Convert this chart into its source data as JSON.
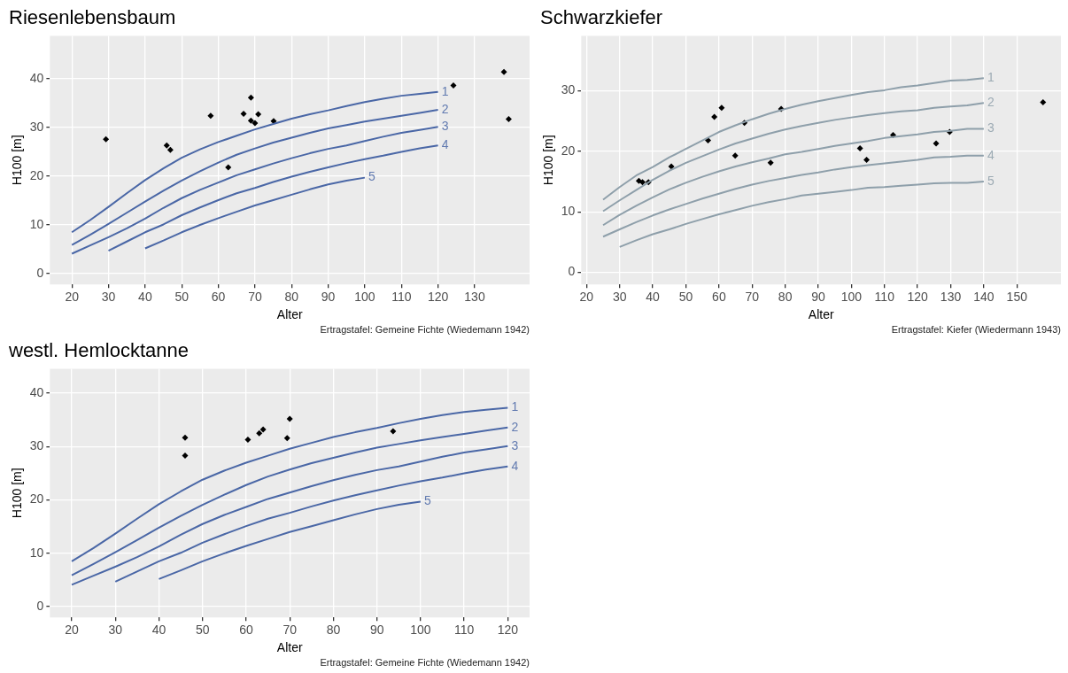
{
  "chart_data": [
    {
      "type": "line",
      "title": "Riesenlebensbaum",
      "xlabel": "Alter",
      "ylabel": "H100 [m]",
      "annotations": [
        "Ertragstafel: Gemeine Fichte (Wiedemann 1942)"
      ],
      "xlim": [
        14,
        145
      ],
      "xticks": [
        20,
        30,
        40,
        50,
        60,
        70,
        80,
        90,
        100,
        110,
        120,
        130
      ],
      "ylim": [
        -2.2,
        48.8
      ],
      "yticks": [
        0,
        10,
        20,
        30,
        40
      ],
      "grid": true,
      "legend": false,
      "line_style": "solid",
      "series": [
        {
          "name": "1",
          "color": "#4a67a6",
          "marker": "none",
          "x": [
            20,
            25,
            30,
            35,
            40,
            45,
            50,
            55,
            60,
            65,
            70,
            75,
            80,
            85,
            90,
            95,
            100,
            105,
            110,
            115,
            120
          ],
          "values": [
            8.5,
            11,
            13.7,
            16.5,
            19.2,
            21.6,
            23.8,
            25.5,
            27,
            28.3,
            29.6,
            30.7,
            31.8,
            32.7,
            33.5,
            34.4,
            35.2,
            35.9,
            36.5,
            36.9,
            37.3
          ]
        },
        {
          "name": "2",
          "color": "#4a67a6",
          "marker": "none",
          "x": [
            20,
            25,
            30,
            35,
            40,
            45,
            50,
            55,
            60,
            65,
            70,
            75,
            80,
            85,
            90,
            95,
            100,
            105,
            110,
            115,
            120
          ],
          "values": [
            5.9,
            8,
            10.2,
            12.5,
            14.8,
            17,
            19.1,
            21,
            22.8,
            24.4,
            25.7,
            26.9,
            27.9,
            28.9,
            29.8,
            30.5,
            31.2,
            31.8,
            32.4,
            33,
            33.6
          ]
        },
        {
          "name": "3",
          "color": "#4a67a6",
          "marker": "none",
          "x": [
            20,
            25,
            30,
            35,
            40,
            45,
            50,
            55,
            60,
            65,
            70,
            75,
            80,
            85,
            90,
            95,
            100,
            105,
            110,
            115,
            120
          ],
          "values": [
            4.1,
            5.8,
            7.5,
            9.3,
            11.3,
            13.5,
            15.5,
            17.2,
            18.7,
            20.2,
            21.4,
            22.6,
            23.7,
            24.7,
            25.6,
            26.3,
            27.2,
            28.1,
            28.9,
            29.5,
            30.1
          ]
        },
        {
          "name": "4",
          "color": "#4a67a6",
          "marker": "none",
          "x": [
            30,
            35,
            40,
            45,
            50,
            55,
            60,
            65,
            70,
            75,
            80,
            85,
            90,
            95,
            100,
            105,
            110,
            115,
            120
          ],
          "values": [
            4.7,
            6.6,
            8.5,
            10.1,
            12,
            13.6,
            15.1,
            16.5,
            17.6,
            18.8,
            19.9,
            20.9,
            21.8,
            22.7,
            23.5,
            24.2,
            25,
            25.7,
            26.3
          ]
        },
        {
          "name": "5",
          "color": "#4a67a6",
          "marker": "none",
          "x": [
            40,
            45,
            50,
            55,
            60,
            65,
            70,
            75,
            80,
            85,
            90,
            95,
            100
          ],
          "values": [
            5.2,
            6.8,
            8.5,
            10,
            11.4,
            12.7,
            14,
            15.1,
            16.2,
            17.3,
            18.3,
            19.1,
            19.7
          ]
        },
        {
          "type": "scatter",
          "color": "#000000",
          "marker": "diamond",
          "x": [
            29.3,
            45.9,
            46.9,
            57.9,
            62.7,
            66.9,
            68.9,
            68.9,
            70,
            70.9,
            75.1,
            124.2,
            138,
            139.3
          ],
          "values": [
            27.6,
            26.3,
            25.4,
            32.4,
            21.8,
            32.8,
            36.1,
            31.4,
            30.9,
            32.7,
            31.3,
            38.6,
            41.4,
            31.7
          ]
        }
      ]
    },
    {
      "type": "line",
      "title": "Schwarzkiefer",
      "xlabel": "Alter",
      "ylabel": "H100 [m]",
      "annotations": [
        "Ertragstafel: Kiefer (Wiedermann 1943)"
      ],
      "xlim": [
        18.4,
        163.3
      ],
      "xticks": [
        20,
        30,
        40,
        50,
        60,
        70,
        80,
        90,
        100,
        110,
        120,
        130,
        140,
        150
      ],
      "ylim": [
        -2,
        39.1
      ],
      "yticks": [
        0,
        10,
        20,
        30
      ],
      "grid": true,
      "legend": false,
      "line_style": "solid",
      "series": [
        {
          "name": "1",
          "color": "#8e9faa",
          "marker": "none",
          "x": [
            25,
            30,
            35,
            40,
            45,
            50,
            55,
            60,
            65,
            70,
            75,
            80,
            85,
            90,
            95,
            100,
            105,
            110,
            115,
            120,
            125,
            130,
            135,
            140
          ],
          "values": [
            12,
            14.1,
            16,
            17.4,
            19,
            20.4,
            21.8,
            23.2,
            24.3,
            25.3,
            26.2,
            27,
            27.7,
            28.3,
            28.8,
            29.3,
            29.8,
            30.1,
            30.6,
            30.9,
            31.3,
            31.7,
            31.8,
            32.1
          ]
        },
        {
          "name": "2",
          "color": "#8e9faa",
          "marker": "none",
          "x": [
            25,
            30,
            35,
            40,
            45,
            50,
            55,
            60,
            65,
            70,
            75,
            80,
            85,
            90,
            95,
            100,
            105,
            110,
            115,
            120,
            125,
            130,
            135,
            140
          ],
          "values": [
            10.1,
            11.9,
            13.6,
            15.3,
            16.8,
            18.1,
            19.2,
            20.3,
            21.3,
            22.1,
            22.9,
            23.6,
            24.2,
            24.7,
            25.2,
            25.6,
            26,
            26.3,
            26.6,
            26.8,
            27.2,
            27.4,
            27.6,
            28
          ]
        },
        {
          "name": "3",
          "color": "#8e9faa",
          "marker": "none",
          "x": [
            25,
            30,
            35,
            40,
            45,
            50,
            55,
            60,
            65,
            70,
            75,
            80,
            85,
            90,
            95,
            100,
            105,
            110,
            115,
            120,
            125,
            130,
            135,
            140
          ],
          "values": [
            7.8,
            9.5,
            11,
            12.4,
            13.7,
            14.8,
            15.8,
            16.7,
            17.5,
            18.2,
            18.8,
            19.5,
            19.9,
            20.4,
            20.9,
            21.3,
            21.7,
            22.2,
            22.5,
            22.8,
            23.2,
            23.4,
            23.7,
            23.7
          ]
        },
        {
          "name": "4",
          "color": "#8e9faa",
          "marker": "none",
          "x": [
            25,
            30,
            35,
            40,
            45,
            50,
            55,
            60,
            65,
            70,
            75,
            80,
            85,
            90,
            95,
            100,
            105,
            110,
            115,
            120,
            125,
            130,
            135,
            140
          ],
          "values": [
            5.9,
            7.1,
            8.3,
            9.4,
            10.4,
            11.3,
            12.2,
            13,
            13.8,
            14.5,
            15.1,
            15.6,
            16.1,
            16.5,
            17,
            17.4,
            17.7,
            18,
            18.3,
            18.6,
            19,
            19.1,
            19.3,
            19.3
          ]
        },
        {
          "name": "5",
          "color": "#8e9faa",
          "marker": "none",
          "x": [
            30,
            35,
            40,
            45,
            50,
            55,
            60,
            65,
            70,
            75,
            80,
            85,
            90,
            95,
            100,
            105,
            110,
            115,
            120,
            125,
            130,
            135,
            140
          ],
          "values": [
            4.2,
            5.3,
            6.3,
            7.1,
            8,
            8.8,
            9.6,
            10.3,
            11,
            11.6,
            12.1,
            12.7,
            13,
            13.3,
            13.6,
            14,
            14.1,
            14.3,
            14.5,
            14.7,
            14.8,
            14.8,
            15
          ]
        },
        {
          "type": "scatter",
          "color": "#000000",
          "marker": "diamond",
          "x": [
            35.8,
            36.9,
            38.7,
            45.6,
            56.7,
            58.6,
            60.8,
            64.9,
            67.7,
            75.6,
            78.8,
            102.6,
            104.6,
            112.6,
            125.6,
            129.7,
            157.9
          ],
          "values": [
            15.1,
            14.9,
            14.9,
            17.5,
            21.8,
            25.7,
            27.2,
            19.3,
            24.7,
            18.1,
            27,
            20.5,
            18.6,
            22.7,
            21.3,
            23.2,
            28.1
          ]
        }
      ]
    },
    {
      "type": "line",
      "title": "westl. Hemlocktanne",
      "xlabel": "Alter",
      "ylabel": "H100 [m]",
      "annotations": [
        "Ertragstafel: Gemeine Fichte (Wiedemann 1942)"
      ],
      "xlim": [
        15,
        125
      ],
      "xticks": [
        20,
        30,
        40,
        50,
        60,
        70,
        80,
        90,
        100,
        110,
        120
      ],
      "ylim": [
        -2,
        44.6
      ],
      "yticks": [
        0,
        10,
        20,
        30,
        40
      ],
      "grid": true,
      "legend": false,
      "line_style": "solid",
      "series": [
        {
          "name": "1",
          "color": "#4a67a6",
          "marker": "none",
          "x": [
            20,
            25,
            30,
            35,
            40,
            45,
            50,
            55,
            60,
            65,
            70,
            75,
            80,
            85,
            90,
            95,
            100,
            105,
            110,
            115,
            120
          ],
          "values": [
            8.5,
            11,
            13.7,
            16.5,
            19.2,
            21.6,
            23.8,
            25.5,
            27,
            28.3,
            29.6,
            30.7,
            31.8,
            32.7,
            33.5,
            34.4,
            35.2,
            35.9,
            36.5,
            36.9,
            37.3
          ]
        },
        {
          "name": "2",
          "color": "#4a67a6",
          "marker": "none",
          "x": [
            20,
            25,
            30,
            35,
            40,
            45,
            50,
            55,
            60,
            65,
            70,
            75,
            80,
            85,
            90,
            95,
            100,
            105,
            110,
            115,
            120
          ],
          "values": [
            5.9,
            8,
            10.2,
            12.5,
            14.8,
            17,
            19.1,
            21,
            22.8,
            24.4,
            25.7,
            26.9,
            27.9,
            28.9,
            29.8,
            30.5,
            31.2,
            31.8,
            32.4,
            33,
            33.6
          ]
        },
        {
          "name": "3",
          "color": "#4a67a6",
          "marker": "none",
          "x": [
            20,
            25,
            30,
            35,
            40,
            45,
            50,
            55,
            60,
            65,
            70,
            75,
            80,
            85,
            90,
            95,
            100,
            105,
            110,
            115,
            120
          ],
          "values": [
            4.1,
            5.8,
            7.5,
            9.3,
            11.3,
            13.5,
            15.5,
            17.2,
            18.7,
            20.2,
            21.4,
            22.6,
            23.7,
            24.7,
            25.6,
            26.3,
            27.2,
            28.1,
            28.9,
            29.5,
            30.1
          ]
        },
        {
          "name": "4",
          "color": "#4a67a6",
          "marker": "none",
          "x": [
            30,
            35,
            40,
            45,
            50,
            55,
            60,
            65,
            70,
            75,
            80,
            85,
            90,
            95,
            100,
            105,
            110,
            115,
            120
          ],
          "values": [
            4.7,
            6.6,
            8.5,
            10.1,
            12,
            13.6,
            15.1,
            16.5,
            17.6,
            18.8,
            19.9,
            20.9,
            21.8,
            22.7,
            23.5,
            24.2,
            25,
            25.7,
            26.3
          ]
        },
        {
          "name": "5",
          "color": "#4a67a6",
          "marker": "none",
          "x": [
            40,
            45,
            50,
            55,
            60,
            65,
            70,
            75,
            80,
            85,
            90,
            95,
            100
          ],
          "values": [
            5.2,
            6.8,
            8.5,
            10,
            11.4,
            12.7,
            14,
            15.1,
            16.2,
            17.3,
            18.3,
            19.1,
            19.7
          ]
        },
        {
          "type": "scatter",
          "color": "#000000",
          "marker": "diamond",
          "x": [
            46,
            46,
            60.4,
            63,
            63.9,
            69.4,
            70,
            93.7
          ],
          "values": [
            31.7,
            28.3,
            31.3,
            32.5,
            33.2,
            31.6,
            35.2,
            32.9
          ]
        }
      ]
    }
  ]
}
